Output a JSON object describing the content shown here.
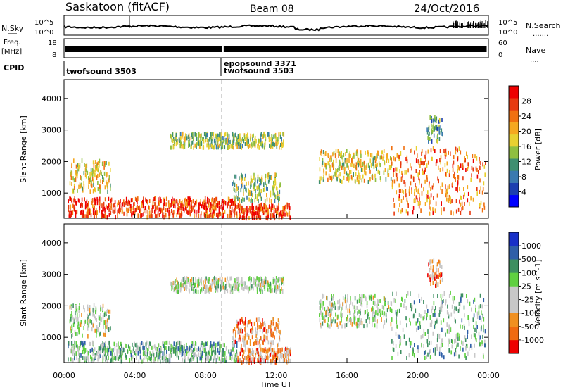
{
  "header": {
    "station": "Saskatoon (fitACF)",
    "beam": "Beam 08",
    "date": "24/Oct/2016"
  },
  "left_labels": {
    "nsky": "N.Sky",
    "freq_top": "Freq.",
    "freq_unit": "[MHz]",
    "cpid": "CPID"
  },
  "right_labels": {
    "nsearch": "N.Search",
    "nsearch_dots": ".......",
    "nave": "Nave",
    "nave_dots": "...."
  },
  "nsky_ticks": {
    "top": "10^5",
    "bottom": "10^0"
  },
  "freq_ticks": [
    "18",
    "8"
  ],
  "nave_ticks": [
    "60",
    "0"
  ],
  "cpid_entries": [
    {
      "text": "twofsound 3503"
    },
    {
      "text": "epopsound 3371"
    },
    {
      "text": "twofsound 3503"
    }
  ],
  "colors": {
    "power_scale": [
      "#0000ff",
      "#1c3fb0",
      "#3a7ab0",
      "#3e8f70",
      "#8fbf40",
      "#e8d030",
      "#f5a820",
      "#f07010",
      "#e83a10",
      "#ee0000"
    ],
    "velocity_scale": [
      "#1830c8",
      "#2f5fa8",
      "#3d8f60",
      "#5fd040",
      "#c8c8c8",
      "#c8c8c8",
      "#f09020",
      "#f06a10",
      "#ee0000"
    ]
  },
  "chart_data": [
    {
      "type": "heatmap",
      "panel": "power",
      "xlabel": "Time UT",
      "ylabel": "Slant Range [km]",
      "x_ticks": [
        "00:00",
        "04:00",
        "08:00",
        "12:00",
        "16:00",
        "20:00",
        "00:00"
      ],
      "y_ticks": [
        "1000",
        "2000",
        "3000",
        "4000"
      ],
      "xlim": [
        0,
        24
      ],
      "ylim": [
        200,
        4600
      ],
      "colorbar_label": "Power [dB]",
      "colorbar_ticks": [
        "4",
        "8",
        "12",
        "16",
        "20",
        "24",
        "28"
      ],
      "regions": [
        {
          "t0": 0.2,
          "t1": 9.8,
          "r0": 300,
          "r1": 900,
          "level": 8
        },
        {
          "t0": 0.3,
          "t1": 2.6,
          "r0": 1100,
          "r1": 2100,
          "level": 5
        },
        {
          "t0": 9.8,
          "t1": 12.8,
          "r0": 260,
          "r1": 700,
          "level": 8
        },
        {
          "t0": 9.5,
          "t1": 12.2,
          "r0": 800,
          "r1": 1650,
          "level": 4
        },
        {
          "t0": 6.0,
          "t1": 12.4,
          "r0": 2500,
          "r1": 2950,
          "level": 4
        },
        {
          "t0": 14.4,
          "t1": 18.5,
          "r0": 1400,
          "r1": 2400,
          "level": 5
        },
        {
          "t0": 18.5,
          "t1": 23.8,
          "r0": 400,
          "r1": 2500,
          "level": 7
        },
        {
          "t0": 20.5,
          "t1": 21.4,
          "r0": 2700,
          "r1": 3500,
          "level": 3
        }
      ]
    },
    {
      "type": "heatmap",
      "panel": "velocity",
      "xlabel": "Time UT",
      "ylabel": "Slant Range [km]",
      "x_ticks": [
        "00:00",
        "04:00",
        "08:00",
        "12:00",
        "16:00",
        "20:00",
        "00:00"
      ],
      "y_ticks": [
        "1000",
        "2000",
        "3000",
        "4000"
      ],
      "xlim": [
        0,
        24
      ],
      "ylim": [
        200,
        4600
      ],
      "colorbar_label": "Velocity [m s^-1]",
      "colorbar_ticks": [
        "1000",
        "500",
        "100",
        "25",
        "-25",
        "-100",
        "-500",
        "-1000"
      ],
      "regions": [
        {
          "t0": 0.2,
          "t1": 9.8,
          "r0": 300,
          "r1": 900,
          "level": 3
        },
        {
          "t0": 0.3,
          "t1": 2.6,
          "r0": 1100,
          "r1": 2100,
          "level": 4
        },
        {
          "t0": 9.8,
          "t1": 12.8,
          "r0": 260,
          "r1": 700,
          "level": 6
        },
        {
          "t0": 9.5,
          "t1": 12.2,
          "r0": 800,
          "r1": 1650,
          "level": 6
        },
        {
          "t0": 6.0,
          "t1": 12.4,
          "r0": 2500,
          "r1": 2950,
          "level": 4
        },
        {
          "t0": 14.4,
          "t1": 18.5,
          "r0": 1400,
          "r1": 2400,
          "level": 4
        },
        {
          "t0": 18.5,
          "t1": 23.8,
          "r0": 400,
          "r1": 2500,
          "level": 3
        },
        {
          "t0": 20.5,
          "t1": 21.4,
          "r0": 2700,
          "r1": 3500,
          "level": 6
        }
      ]
    }
  ]
}
